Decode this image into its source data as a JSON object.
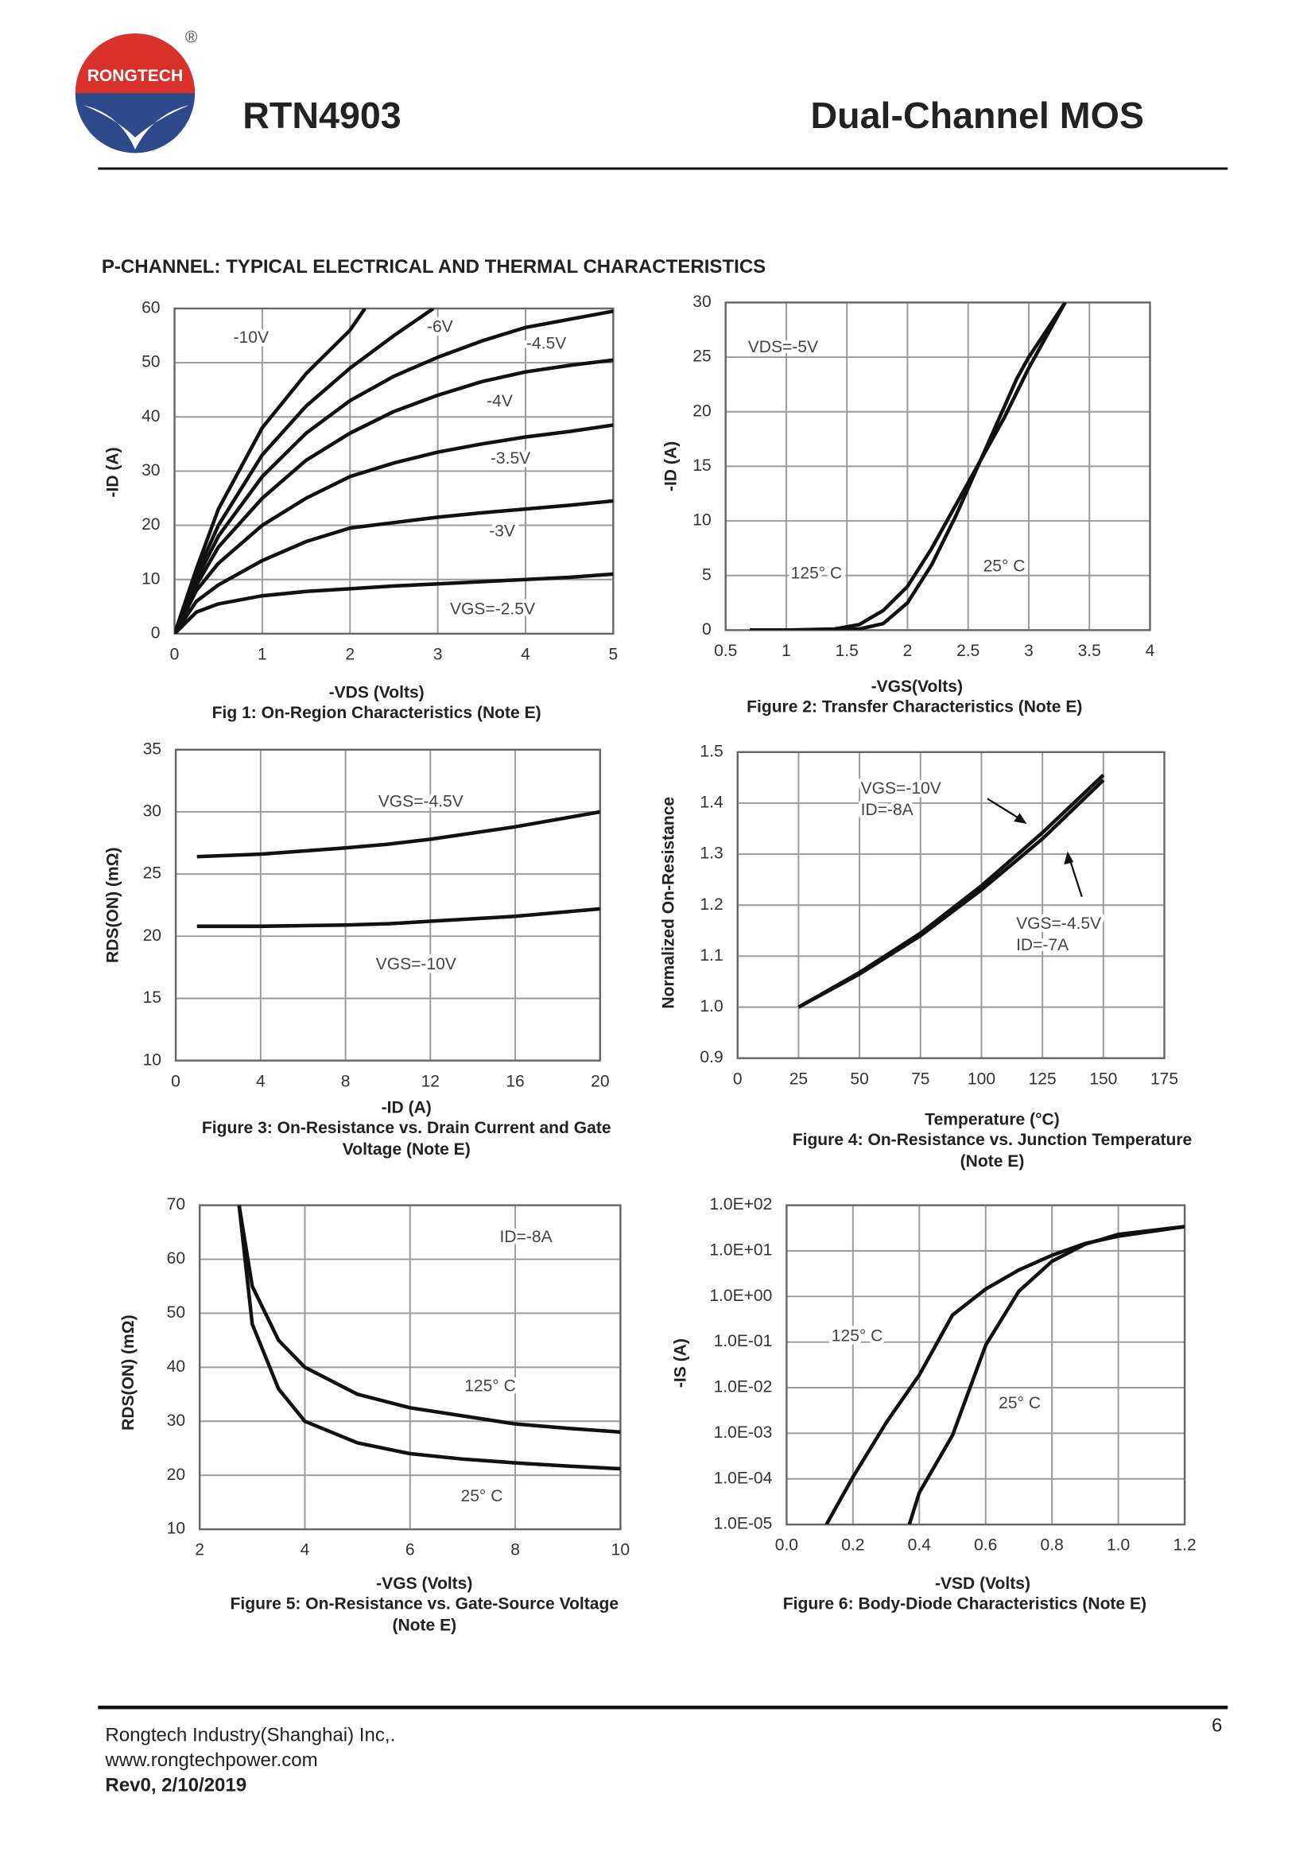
{
  "header": {
    "logo": "RONGTECH",
    "registered": "®",
    "title": "RTN4903",
    "subtitle": "Dual-Channel MOS"
  },
  "section_title": "P-CHANNEL: TYPICAL ELECTRICAL AND THERMAL CHARACTERISTICS",
  "chart_data": [
    {
      "type": "line",
      "xlabel": "-VDS (Volts)",
      "ylabel": "-ID (A)",
      "caption": [
        "Fig 1: On-Region Characteristics (Note E)"
      ],
      "xlim": [
        0,
        5
      ],
      "xticks": [
        0,
        1,
        2,
        3,
        4,
        5
      ],
      "ylim": [
        0,
        60
      ],
      "yticks": [
        0,
        10,
        20,
        30,
        40,
        50,
        60
      ],
      "grid": true,
      "x": [
        0,
        0.25,
        0.5,
        1,
        1.5,
        2,
        2.5,
        3,
        3.5,
        4,
        4.5,
        5
      ],
      "series": [
        {
          "name": [
            "-10V"
          ],
          "color": "#111",
          "x": [
            0,
            0.25,
            0.5,
            1,
            1.5,
            2,
            2.17
          ],
          "values": [
            0,
            12,
            23,
            38,
            48,
            56,
            60
          ]
        },
        {
          "name": [
            "-6V"
          ],
          "color": "#111",
          "x": [
            0,
            0.25,
            0.5,
            1,
            1.5,
            2,
            2.5,
            2.95
          ],
          "values": [
            0,
            11,
            20,
            33,
            42,
            49,
            55,
            60
          ]
        },
        {
          "name": [
            "-4.5V"
          ],
          "color": "#111",
          "values": [
            0,
            10,
            18,
            29,
            37,
            43,
            47.5,
            51,
            54,
            56.5,
            58,
            59.5
          ]
        },
        {
          "name": [
            "-4V"
          ],
          "color": "#111",
          "values": [
            0,
            9,
            16,
            25,
            32,
            37,
            41,
            44,
            46.5,
            48.3,
            49.5,
            50.5
          ]
        },
        {
          "name": [
            "-3.5V"
          ],
          "color": "#111",
          "values": [
            0,
            8,
            13,
            20,
            25,
            29,
            31.5,
            33.5,
            35,
            36.3,
            37.3,
            38.5
          ]
        },
        {
          "name": [
            "-3V"
          ],
          "color": "#111",
          "values": [
            0,
            6,
            9,
            13.5,
            17,
            19.5,
            20.5,
            21.5,
            22.3,
            23,
            23.7,
            24.5
          ]
        },
        {
          "name": [
            "VGS=-2.5V"
          ],
          "color": "#111",
          "values": [
            0,
            4,
            5.5,
            7,
            7.8,
            8.3,
            8.8,
            9.2,
            9.6,
            10,
            10.4,
            11
          ]
        }
      ]
    },
    {
      "type": "line",
      "xlabel": "-VGS(Volts)",
      "ylabel": "-ID (A)",
      "caption": [
        "Figure 2: Transfer Characteristics (Note E)"
      ],
      "annotations": [
        "VDS=-5V"
      ],
      "xlim": [
        0.5,
        4
      ],
      "xticks": [
        0.5,
        1,
        1.5,
        2,
        2.5,
        3,
        3.5,
        4
      ],
      "ylim": [
        0,
        30
      ],
      "yticks": [
        0,
        5,
        10,
        15,
        20,
        25,
        30
      ],
      "grid": true,
      "series": [
        {
          "name": [
            "125° C"
          ],
          "color": "#111",
          "x": [
            0.7,
            1,
            1.4,
            1.6,
            1.8,
            2,
            2.2,
            2.4,
            2.6,
            2.8,
            3,
            3.3
          ],
          "values": [
            0,
            0,
            0.1,
            0.5,
            1.8,
            4,
            7.5,
            11.5,
            15.5,
            19.5,
            24,
            30
          ]
        },
        {
          "name": [
            "25° C"
          ],
          "color": "#111",
          "x": [
            0.7,
            1,
            1.4,
            1.6,
            1.8,
            2,
            2.2,
            2.4,
            2.6,
            2.8,
            2.9,
            3,
            3.3
          ],
          "values": [
            0,
            0,
            0,
            0.1,
            0.6,
            2.5,
            6,
            10.5,
            15.5,
            20.5,
            23,
            25,
            30
          ]
        }
      ]
    },
    {
      "type": "line",
      "xlabel": "-ID (A)",
      "ylabel": "RDS(ON) (mΩ)",
      "caption": [
        "Figure 3: On-Resistance vs. Drain Current and Gate",
        "Voltage (Note E)"
      ],
      "xlim": [
        0,
        20
      ],
      "xticks": [
        0,
        4,
        8,
        12,
        16,
        20
      ],
      "ylim": [
        10,
        35
      ],
      "yticks": [
        10,
        15,
        20,
        25,
        30,
        35
      ],
      "grid": true,
      "x": [
        1,
        4,
        8,
        10,
        12,
        16,
        20
      ],
      "series": [
        {
          "name": [
            "VGS=-4.5V"
          ],
          "color": "#111",
          "values": [
            26.4,
            26.6,
            27.1,
            27.4,
            27.8,
            28.8,
            30
          ]
        },
        {
          "name": [
            "VGS=-10V"
          ],
          "color": "#111",
          "values": [
            20.8,
            20.8,
            20.9,
            21,
            21.2,
            21.6,
            22.2
          ]
        }
      ]
    },
    {
      "type": "line",
      "xlabel": "Temperature (°C)",
      "ylabel": "Normalized On-Resistance",
      "caption": [
        "Figure 4: On-Resistance vs. Junction Temperature",
        "(Note E)"
      ],
      "xlim": [
        0,
        175
      ],
      "xticks": [
        0,
        25,
        50,
        75,
        100,
        125,
        150,
        175
      ],
      "ylim": [
        0.9,
        1.5
      ],
      "yticks": [
        0.9,
        {
          "value": 1,
          "label": "1.0"
        },
        1.1,
        1.2,
        1.3,
        1.4,
        1.5
      ],
      "grid": true,
      "x": [
        25,
        50,
        75,
        100,
        125,
        150
      ],
      "series": [
        {
          "name": [
            "VGS=-10V",
            "ID=-8A"
          ],
          "color": "#111",
          "values": [
            1.0,
            1.065,
            1.14,
            1.23,
            1.33,
            1.445
          ]
        },
        {
          "name": [
            "VGS=-4.5V",
            "ID=-7A"
          ],
          "color": "#111",
          "values": [
            1.0,
            1.068,
            1.145,
            1.238,
            1.342,
            1.455
          ]
        }
      ]
    },
    {
      "type": "line",
      "xlabel": "-VGS (Volts)",
      "ylabel": "RDS(ON) (mΩ)",
      "caption": [
        "Figure 5: On-Resistance vs. Gate-Source Voltage",
        "(Note E)"
      ],
      "annotations": [
        "ID=-8A"
      ],
      "xlim": [
        2,
        10
      ],
      "xticks": [
        2,
        4,
        6,
        8,
        10
      ],
      "ylim": [
        10,
        70
      ],
      "yticks": [
        10,
        20,
        30,
        40,
        50,
        60,
        70
      ],
      "grid": true,
      "x": [
        2.75,
        3,
        3.5,
        4,
        5,
        6,
        7,
        8,
        9,
        10
      ],
      "series": [
        {
          "name": [
            "125° C"
          ],
          "color": "#111",
          "values": [
            70,
            55,
            45,
            40,
            35,
            32.5,
            31,
            29.5,
            28.7,
            28
          ]
        },
        {
          "name": [
            "25° C"
          ],
          "color": "#111",
          "values": [
            70,
            48,
            36,
            30,
            26,
            24,
            23,
            22.3,
            21.7,
            21.2
          ]
        }
      ]
    },
    {
      "type": "line",
      "xlabel": "-VSD (Volts)",
      "ylabel": "-IS (A)",
      "caption": [
        "Figure 6: Body-Diode Characteristics (Note E)"
      ],
      "ylog": true,
      "xlim": [
        0,
        1.2
      ],
      "xticks": [
        {
          "value": 0,
          "label": "0.0"
        },
        0.2,
        0.4,
        0.6,
        0.8,
        {
          "value": 1,
          "label": "1.0"
        },
        1.2
      ],
      "ylim": [
        1e-05,
        100
      ],
      "yticks": [
        {
          "value": 100,
          "label": "1.0E+02"
        },
        {
          "value": 10,
          "label": "1.0E+01"
        },
        {
          "value": 1,
          "label": "1.0E+00"
        },
        {
          "value": 0.1,
          "label": "1.0E-01"
        },
        {
          "value": 0.01,
          "label": "1.0E-02"
        },
        {
          "value": 0.001,
          "label": "1.0E-03"
        },
        {
          "value": 0.0001,
          "label": "1.0E-04"
        },
        {
          "value": 1e-05,
          "label": "1.0E-05"
        }
      ],
      "grid": true,
      "series": [
        {
          "name": [
            "125° C"
          ],
          "color": "#111",
          "x": [
            0.12,
            0.2,
            0.3,
            0.4,
            0.5,
            0.6,
            0.7,
            0.8,
            0.9,
            1.0,
            1.2
          ],
          "values": [
            1e-05,
            0.00011,
            0.0017,
            0.019,
            0.39,
            1.45,
            3.8,
            8,
            14.5,
            21,
            34
          ]
        },
        {
          "name": [
            "25° C"
          ],
          "color": "#111",
          "x": [
            0.37,
            0.4,
            0.5,
            0.6,
            0.7,
            0.8,
            0.9,
            1.0,
            1.2
          ],
          "values": [
            1e-05,
            5e-05,
            0.0009,
            0.085,
            1.3,
            5.9,
            14,
            23,
            34
          ]
        }
      ]
    }
  ],
  "footer": {
    "company": "Rongtech Industry(Shanghai) Inc,.",
    "website": "www.rongtechpower.com",
    "revision": "Rev0, 2/10/2019",
    "page": "6"
  }
}
